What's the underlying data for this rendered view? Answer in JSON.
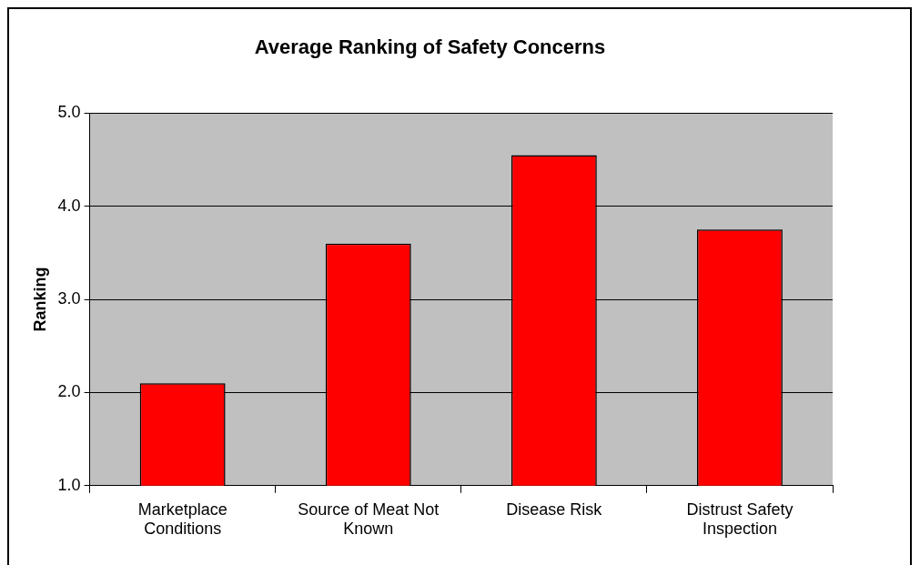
{
  "chart_data": {
    "type": "bar",
    "title": "Average Ranking of Safety Concerns",
    "ylabel": "Ranking",
    "categories": [
      "Marketplace Conditions",
      "Source of Meat Not Known",
      "Disease Risk",
      "Distrust Safety Inspection"
    ],
    "values": [
      2.1,
      3.6,
      4.55,
      3.75
    ],
    "color": "#ff0000",
    "ylim": [
      1,
      5
    ],
    "yticks": [
      {
        "value": 1,
        "label": "1.0"
      },
      {
        "value": 2,
        "label": "2.0"
      },
      {
        "value": 3,
        "label": "3.0"
      },
      {
        "value": 4,
        "label": "4.0"
      },
      {
        "value": 5,
        "label": "5.0"
      }
    ],
    "grid": "y",
    "legend": false
  }
}
